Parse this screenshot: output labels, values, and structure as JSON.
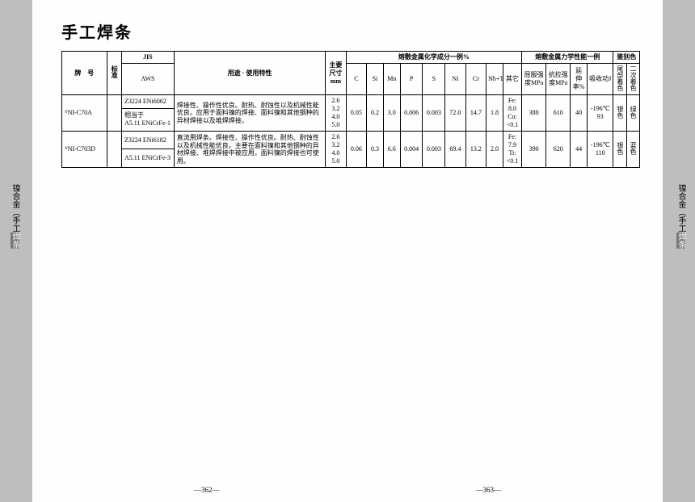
{
  "title": "手工焊条",
  "page_left": "—362—",
  "page_right": "—363—",
  "side_label_plain": "镍合金（手工",
  "side_label_hi": "焊条",
  "head": {
    "grade": "牌　号",
    "std": "标准",
    "jis": "JIS",
    "aws": "AWS",
    "use": "用途 · 使用特性",
    "size": "主要尺寸mm",
    "chem_group": "熔敷金属化学成分一例%",
    "mech_group": "熔敷金属力学性能一例",
    "color_group": "鉴别色",
    "c": "C",
    "si": "Si",
    "mn": "Mn",
    "p": "P",
    "s": "S",
    "ni": "Ni",
    "cr": "Cr",
    "nb": "Nb+Ta",
    "other": "其它",
    "ys": "屈服强度MPa",
    "ts": "抗拉强度MPa",
    "el": "延伸率%",
    "imp": "吸收功J",
    "col1": "尾部着色",
    "col2": "二次着色"
  },
  "rows": [
    {
      "grade": "ᴺNI-C70A",
      "jis": "Z3224 ENi6062",
      "aws_top": "相当于",
      "aws_bot": "A5.11 ENiCrFe-1",
      "use": "焊接性、操作性优良。耐热、耐蚀性以及机械性能优良。应用于面料镍的焊接、面料镍和其他钢种的异材焊接以及堆焊焊接。",
      "size": "2.6\n3.2\n4.0\n5.0",
      "c": "0.05",
      "si": "0.2",
      "mn": "3.0",
      "p": "0.006",
      "s": "0.003",
      "ni": "72.0",
      "cr": "14.7",
      "nb": "1.8",
      "other": "Fe:\n8.0\nCo:\n<0.1",
      "ys": "380",
      "ts": "610",
      "el": "40",
      "imp": "-196℃\n93",
      "col1": "银色",
      "col2": "绿色"
    },
    {
      "grade": "ᴺNI-C703D",
      "jis": "Z3224 ENi6182",
      "aws_top": "",
      "aws_bot": "A5.11 ENiCrFe-3",
      "use": "直流用焊条。焊接性、操作性优良。耐热、耐蚀性以及机械性能优良。主要在面料镍和其他钢种的异材焊接、堆焊焊接中被应用。面料镍的焊接也可使用。",
      "size": "2.6\n3.2\n4.0\n5.0",
      "c": "0.06",
      "si": "0.3",
      "mn": "6.6",
      "p": "0.004",
      "s": "0.003",
      "ni": "69.4",
      "cr": "13.2",
      "nb": "2.0",
      "other": "Fe:\n7.9\nTi:\n<0.1",
      "ys": "390",
      "ts": "620",
      "el": "44",
      "imp": "-196℃\n110",
      "col1": "银色",
      "col2": "蓝色"
    }
  ]
}
